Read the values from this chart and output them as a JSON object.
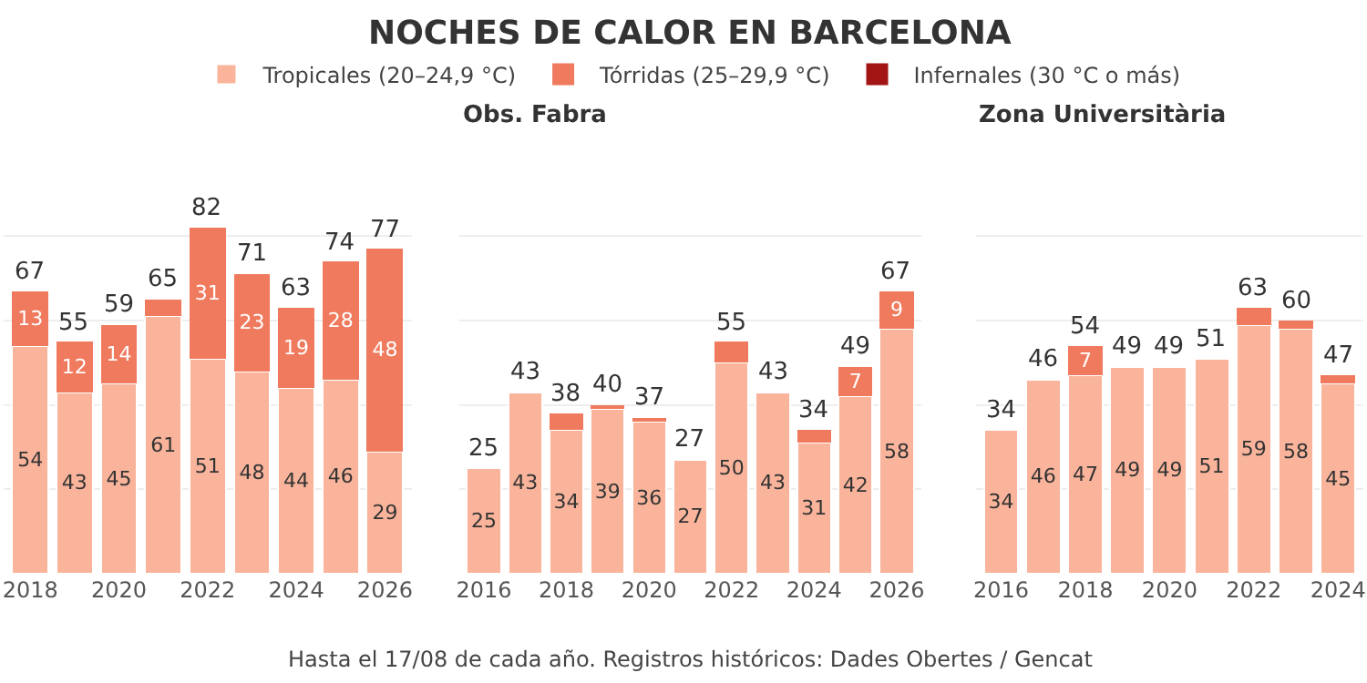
{
  "chart_data": [
    {
      "type": "bar",
      "stacked": true,
      "grid": "y",
      "tick_labels": "x",
      "categories": [
        "2018",
        null,
        "2020",
        null,
        "2022",
        null,
        "2024",
        null,
        "2026"
      ],
      "yticks": [
        {
          "value": 20,
          "label": null
        },
        {
          "value": 40,
          "label": null
        },
        {
          "value": 60,
          "label": null
        },
        {
          "value": 80,
          "label": null
        }
      ],
      "totals": [
        "67",
        "55",
        "59",
        "65",
        "82",
        "71",
        "63",
        "74",
        "77"
      ],
      "series": [
        {
          "color": "#f9b49b",
          "values": [
            54,
            43,
            45,
            61,
            51,
            48,
            44,
            46,
            29
          ],
          "value_labels": [
            "54",
            "43",
            "45",
            "61",
            "51",
            "48",
            "44",
            "46",
            "29"
          ]
        },
        {
          "color": "#f07a5e",
          "values": [
            13,
            12,
            14,
            4,
            31,
            23,
            19,
            28,
            48
          ],
          "value_labels": [
            "13",
            "12",
            "14",
            null,
            "31",
            "23",
            "19",
            "28",
            "48"
          ]
        }
      ]
    },
    {
      "type": "bar",
      "title": "NOCHES DE CALOR EN BARCELONA",
      "subtitle": "Obs. Fabra",
      "stacked": true,
      "legend": "top",
      "grid": "y",
      "tick_labels": "x",
      "annotations": [
        "Hasta el 17/08 de cada año. Registros históricos: Dades Obertes / Gencat"
      ],
      "categories": [
        "2016",
        null,
        "2018",
        null,
        "2020",
        null,
        "2022",
        null,
        "2024",
        null,
        "2026"
      ],
      "yticks": [
        {
          "value": 20,
          "label": null
        },
        {
          "value": 40,
          "label": null
        },
        {
          "value": 60,
          "label": null
        },
        {
          "value": 80,
          "label": null
        }
      ],
      "totals": [
        "25",
        "43",
        "38",
        "40",
        "37",
        "27",
        "55",
        "43",
        "34",
        "49",
        "67"
      ],
      "series": [
        {
          "name": "Tropicales (20–24,9 °C)",
          "color": "#f9b49b",
          "values": [
            25,
            43,
            34,
            39,
            36,
            27,
            50,
            43,
            31,
            42,
            58
          ],
          "value_labels": [
            "25",
            "43",
            "34",
            "39",
            "36",
            "27",
            "50",
            "43",
            "31",
            "42",
            "58"
          ]
        },
        {
          "name": "Tórridas (25–29,9 °C)",
          "color": "#f07a5e",
          "values": [
            0,
            0,
            4,
            1,
            1,
            0,
            5,
            0,
            3,
            7,
            9
          ],
          "value_labels": [
            null,
            null,
            null,
            null,
            null,
            null,
            null,
            null,
            null,
            "7",
            "9"
          ]
        },
        {
          "name": "Infernales (30 °C o más)",
          "color": "#a31515",
          "values": [
            0,
            0,
            0,
            0,
            0,
            0,
            0,
            0,
            0,
            0,
            0
          ]
        }
      ]
    },
    {
      "type": "bar",
      "subtitle": "Zona Universitària",
      "stacked": true,
      "grid": "y",
      "tick_labels": "x",
      "categories": [
        "2016",
        null,
        "2018",
        null,
        "2020",
        null,
        "2022",
        null,
        "2024"
      ],
      "yticks": [
        {
          "value": 20,
          "label": null
        },
        {
          "value": 40,
          "label": null
        },
        {
          "value": 60,
          "label": null
        },
        {
          "value": 80,
          "label": null
        }
      ],
      "totals": [
        "34",
        "46",
        "54",
        "49",
        "49",
        "51",
        "63",
        "60",
        "47"
      ],
      "series": [
        {
          "color": "#f9b49b",
          "values": [
            34,
            46,
            47,
            49,
            49,
            51,
            59,
            58,
            45
          ],
          "value_labels": [
            "34",
            "46",
            "47",
            "49",
            "49",
            "51",
            "59",
            "58",
            "45"
          ]
        },
        {
          "color": "#f07a5e",
          "values": [
            0,
            0,
            7,
            0,
            0,
            0,
            4,
            2,
            2
          ],
          "value_labels": [
            null,
            null,
            "7",
            null,
            null,
            null,
            null,
            null,
            null
          ]
        }
      ]
    }
  ]
}
